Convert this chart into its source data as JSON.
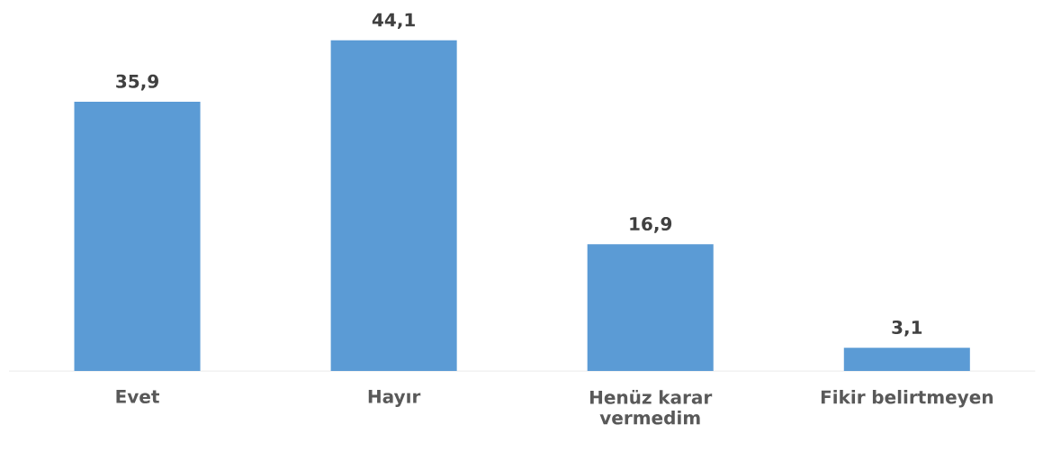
{
  "chart_data": {
    "type": "bar",
    "categories": [
      "Evet",
      "Hayır",
      "Henüz karar vermedim",
      "Fikir belirtmeyen"
    ],
    "values": [
      35.9,
      44.1,
      16.9,
      3.1
    ],
    "value_labels": [
      "35,9",
      "44,1",
      "16,9",
      "3,1"
    ],
    "color": "#5b9bd5"
  }
}
